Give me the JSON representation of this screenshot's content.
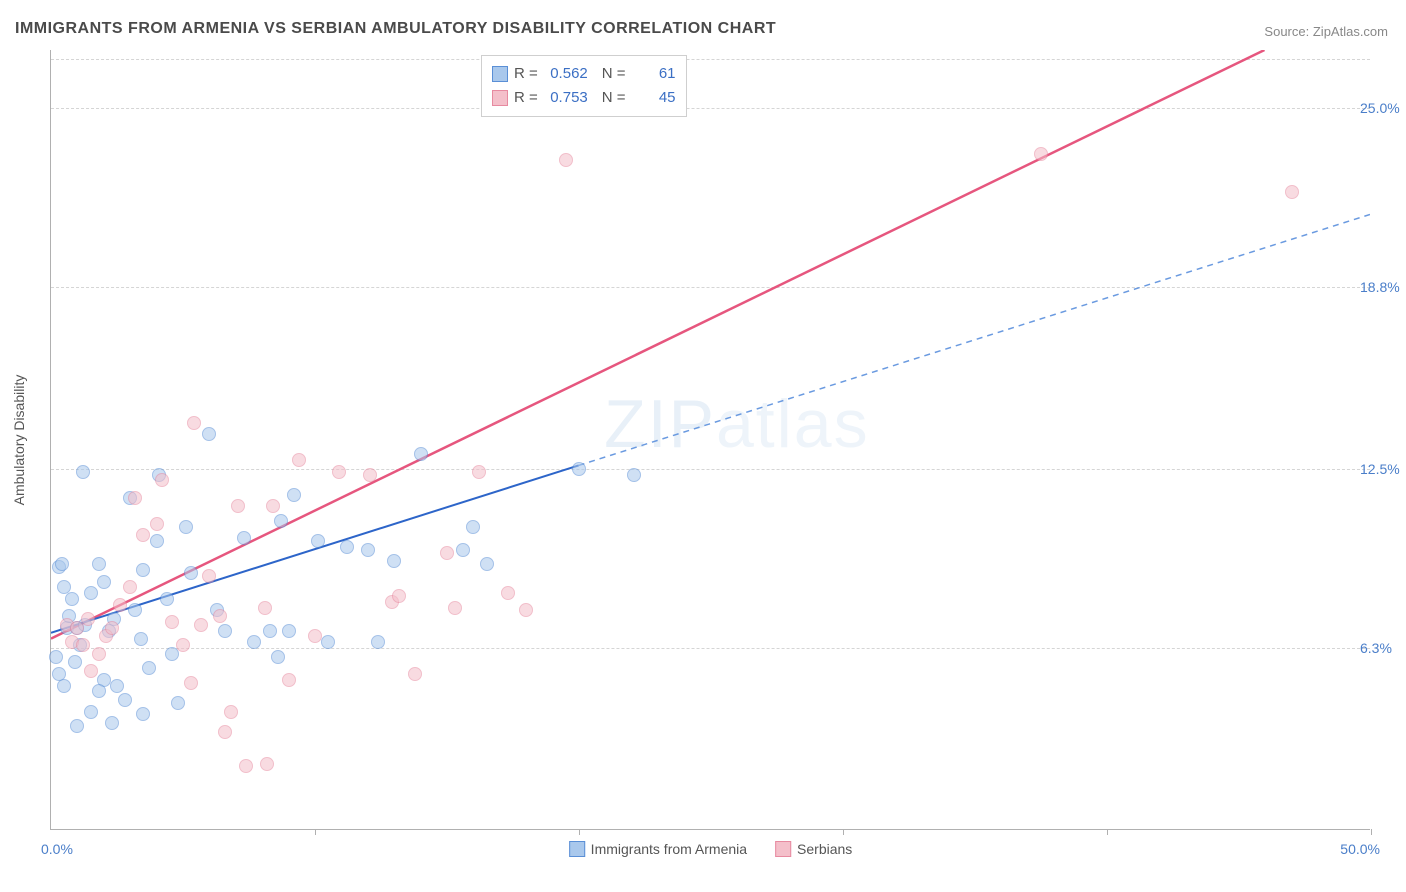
{
  "title": "IMMIGRANTS FROM ARMENIA VS SERBIAN AMBULATORY DISABILITY CORRELATION CHART",
  "source_label": "Source:",
  "source_name": "ZipAtlas.com",
  "watermark_a": "ZIP",
  "watermark_b": "atlas",
  "chart": {
    "type": "scatter",
    "background_color": "#ffffff",
    "grid_color": "#d5d5d5",
    "axis_color": "#b0b0b0",
    "tick_label_color": "#4a7ec9",
    "xlim": [
      0,
      50
    ],
    "ylim": [
      0,
      27
    ],
    "x_ticks": [
      10,
      20,
      30,
      40,
      50
    ],
    "y_ticks": [
      {
        "v": 6.3,
        "label": "6.3%"
      },
      {
        "v": 12.5,
        "label": "12.5%"
      },
      {
        "v": 18.8,
        "label": "18.8%"
      },
      {
        "v": 25.0,
        "label": "25.0%"
      }
    ],
    "x_start_label": "0.0%",
    "x_end_label": "50.0%",
    "y_axis_title": "Ambulatory Disability",
    "title_fontsize": 16,
    "label_fontsize": 14,
    "marker_size": 14,
    "marker_opacity": 0.55
  },
  "series": [
    {
      "name": "Immigrants from Armenia",
      "fill": "#a9c8ec",
      "stroke": "#5a8fd6",
      "R": "0.562",
      "N": "61",
      "trend": {
        "x1": 0,
        "y1": 6.8,
        "x2": 20,
        "y2": 12.6,
        "dash_x1": 20,
        "dash_y1": 12.6,
        "dash_x2": 50,
        "dash_y2": 21.3,
        "solid_color": "#2d65c9",
        "dash_color": "#6a9ae0",
        "width": 2
      },
      "points": [
        [
          0.3,
          9.1
        ],
        [
          0.5,
          8.4
        ],
        [
          0.4,
          9.2
        ],
        [
          0.6,
          7.0
        ],
        [
          0.7,
          7.4
        ],
        [
          0.8,
          8.0
        ],
        [
          0.2,
          6.0
        ],
        [
          0.3,
          5.4
        ],
        [
          0.5,
          5.0
        ],
        [
          0.9,
          5.8
        ],
        [
          1.2,
          12.4
        ],
        [
          1.0,
          7.0
        ],
        [
          1.5,
          8.2
        ],
        [
          1.3,
          7.1
        ],
        [
          1.1,
          6.4
        ],
        [
          1.8,
          9.2
        ],
        [
          2.0,
          8.6
        ],
        [
          2.2,
          6.9
        ],
        [
          2.4,
          7.3
        ],
        [
          2.0,
          5.2
        ],
        [
          2.5,
          5.0
        ],
        [
          2.8,
          4.5
        ],
        [
          2.3,
          3.7
        ],
        [
          1.0,
          3.6
        ],
        [
          1.5,
          4.1
        ],
        [
          3.0,
          11.5
        ],
        [
          3.2,
          7.6
        ],
        [
          3.4,
          6.6
        ],
        [
          3.7,
          5.6
        ],
        [
          3.5,
          9.0
        ],
        [
          4.0,
          10.0
        ],
        [
          4.4,
          8.0
        ],
        [
          4.1,
          12.3
        ],
        [
          4.6,
          6.1
        ],
        [
          5.1,
          10.5
        ],
        [
          5.3,
          8.9
        ],
        [
          6.0,
          13.7
        ],
        [
          6.3,
          7.6
        ],
        [
          6.6,
          6.9
        ],
        [
          7.3,
          10.1
        ],
        [
          7.7,
          6.5
        ],
        [
          8.7,
          10.7
        ],
        [
          8.3,
          6.9
        ],
        [
          8.6,
          6.0
        ],
        [
          9.0,
          6.9
        ],
        [
          9.2,
          11.6
        ],
        [
          10.1,
          10.0
        ],
        [
          10.5,
          6.5
        ],
        [
          11.2,
          9.8
        ],
        [
          12.0,
          9.7
        ],
        [
          12.4,
          6.5
        ],
        [
          13.0,
          9.3
        ],
        [
          14.0,
          13.0
        ],
        [
          15.6,
          9.7
        ],
        [
          16.0,
          10.5
        ],
        [
          16.5,
          9.2
        ],
        [
          20.0,
          12.5
        ],
        [
          22.1,
          12.3
        ],
        [
          3.5,
          4.0
        ],
        [
          4.8,
          4.4
        ],
        [
          1.8,
          4.8
        ]
      ]
    },
    {
      "name": "Serbians",
      "fill": "#f4bfca",
      "stroke": "#e78aa0",
      "R": "0.753",
      "N": "45",
      "trend": {
        "x1": 0,
        "y1": 6.6,
        "x2": 46,
        "y2": 27.0,
        "solid_color": "#e6567e",
        "width": 2.5
      },
      "points": [
        [
          0.6,
          7.1
        ],
        [
          0.8,
          6.5
        ],
        [
          1.0,
          7.0
        ],
        [
          1.2,
          6.4
        ],
        [
          1.4,
          7.3
        ],
        [
          1.8,
          6.1
        ],
        [
          2.1,
          6.7
        ],
        [
          1.5,
          5.5
        ],
        [
          2.6,
          7.8
        ],
        [
          2.3,
          7.0
        ],
        [
          3.0,
          8.4
        ],
        [
          3.2,
          11.5
        ],
        [
          3.5,
          10.2
        ],
        [
          4.0,
          10.6
        ],
        [
          4.2,
          12.1
        ],
        [
          4.6,
          7.2
        ],
        [
          5.0,
          6.4
        ],
        [
          5.3,
          5.1
        ],
        [
          5.4,
          14.1
        ],
        [
          5.7,
          7.1
        ],
        [
          6.0,
          8.8
        ],
        [
          6.4,
          7.4
        ],
        [
          6.6,
          3.4
        ],
        [
          7.1,
          11.2
        ],
        [
          7.4,
          2.2
        ],
        [
          8.2,
          2.3
        ],
        [
          8.1,
          7.7
        ],
        [
          8.4,
          11.2
        ],
        [
          9.0,
          5.2
        ],
        [
          9.4,
          12.8
        ],
        [
          10.0,
          6.7
        ],
        [
          10.9,
          12.4
        ],
        [
          12.1,
          12.3
        ],
        [
          12.9,
          7.9
        ],
        [
          13.2,
          8.1
        ],
        [
          13.8,
          5.4
        ],
        [
          15.0,
          9.6
        ],
        [
          15.3,
          7.7
        ],
        [
          16.2,
          12.4
        ],
        [
          17.3,
          8.2
        ],
        [
          18.0,
          7.6
        ],
        [
          19.5,
          23.2
        ],
        [
          37.5,
          23.4
        ],
        [
          47.0,
          22.1
        ],
        [
          6.8,
          4.1
        ]
      ]
    }
  ],
  "legend_bottom": [
    {
      "label": "Immigrants from Armenia",
      "fill": "#a9c8ec",
      "stroke": "#5a8fd6"
    },
    {
      "label": "Serbians",
      "fill": "#f4bfca",
      "stroke": "#e78aa0"
    }
  ]
}
